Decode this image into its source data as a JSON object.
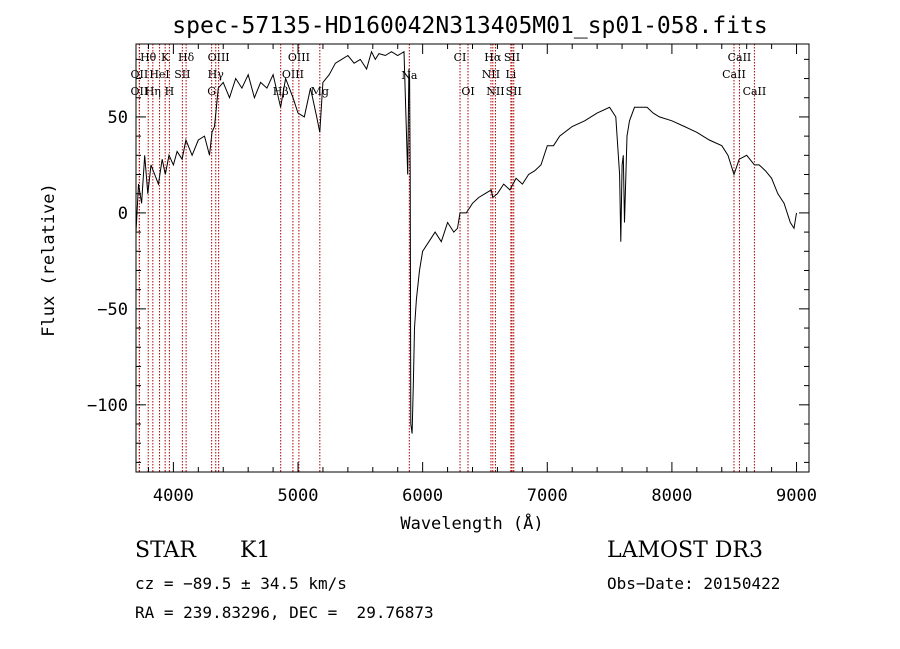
{
  "chart_data": {
    "type": "line",
    "title": "spec-57135-HD160042N313405M01_sp01-058.fits",
    "xlabel": "Wavelength (Å)",
    "ylabel": "Flux (relative)",
    "xlim": [
      3700,
      9100
    ],
    "ylim": [
      -135,
      88
    ],
    "x_ticks": [
      4000,
      5000,
      6000,
      7000,
      8000,
      9000
    ],
    "y_ticks": [
      -100,
      -50,
      0,
      50
    ],
    "line_color": "#000000",
    "marker_color": "#b00000",
    "series": [
      {
        "x": [
          3700,
          3720,
          3745,
          3770,
          3795,
          3820,
          3850,
          3880,
          3910,
          3935,
          3965,
          4000,
          4030,
          4070,
          4100,
          4150,
          4200,
          4250,
          4290,
          4310,
          4330,
          4360,
          4400,
          4450,
          4500,
          4550,
          4600,
          4650,
          4700,
          4750,
          4800,
          4860,
          4900,
          4930,
          4960,
          5000,
          5050,
          5100,
          5150,
          5175,
          5200,
          5250,
          5300,
          5350,
          5400,
          5450,
          5500,
          5550,
          5590,
          5620,
          5650,
          5700,
          5750,
          5800,
          5850,
          5880,
          5890,
          5895,
          5900,
          5905,
          5915,
          5925,
          5935,
          5950,
          5975,
          6000,
          6050,
          6100,
          6150,
          6200,
          6250,
          6280,
          6300,
          6350,
          6400,
          6450,
          6500,
          6550,
          6563,
          6600,
          6650,
          6700,
          6750,
          6800,
          6850,
          6900,
          6950,
          7000,
          7050,
          7100,
          7200,
          7300,
          7400,
          7500,
          7550,
          7580,
          7590,
          7600,
          7610,
          7620,
          7640,
          7660,
          7700,
          7800,
          7850,
          7900,
          8000,
          8100,
          8200,
          8300,
          8400,
          8450,
          8498,
          8540,
          8600,
          8662,
          8700,
          8750,
          8800,
          8850,
          8900,
          8950,
          8980,
          9000
        ],
        "y": [
          -10,
          15,
          5,
          30,
          10,
          25,
          20,
          15,
          28,
          20,
          30,
          25,
          32,
          28,
          38,
          30,
          38,
          40,
          30,
          42,
          45,
          65,
          68,
          60,
          70,
          65,
          72,
          60,
          68,
          65,
          72,
          55,
          70,
          65,
          60,
          52,
          50,
          65,
          50,
          42,
          68,
          72,
          78,
          80,
          82,
          78,
          80,
          75,
          84,
          80,
          83,
          82,
          84,
          82,
          84,
          20,
          75,
          70,
          20,
          -110,
          -115,
          -90,
          -60,
          -45,
          -30,
          -20,
          -15,
          -10,
          -15,
          -5,
          -10,
          -8,
          0,
          0,
          5,
          8,
          10,
          12,
          8,
          10,
          15,
          12,
          18,
          15,
          20,
          22,
          25,
          35,
          35,
          40,
          45,
          48,
          52,
          55,
          50,
          20,
          -15,
          25,
          30,
          -5,
          40,
          48,
          55,
          55,
          52,
          50,
          48,
          45,
          42,
          38,
          35,
          30,
          20,
          28,
          30,
          25,
          25,
          22,
          18,
          10,
          5,
          -5,
          -8,
          0
        ]
      }
    ],
    "line_markers": [
      {
        "label": "Hθ",
        "x": 3798,
        "row": 1
      },
      {
        "label": "K",
        "x": 3934,
        "row": 1
      },
      {
        "label": "Hδ",
        "x": 4102,
        "row": 1
      },
      {
        "label": "OIII",
        "x": 4363,
        "row": 1
      },
      {
        "label": "OIII",
        "x": 5007,
        "row": 1
      },
      {
        "label": "CI",
        "x": 6300,
        "row": 1
      },
      {
        "label": "Hα",
        "x": 6563,
        "row": 1
      },
      {
        "label": "SII",
        "x": 6717,
        "row": 1
      },
      {
        "label": "CaII",
        "x": 8542,
        "row": 1
      },
      {
        "label": "OII",
        "x": 3727,
        "row": 2
      },
      {
        "label": "HeI",
        "x": 3889,
        "row": 2
      },
      {
        "label": "SII",
        "x": 4072,
        "row": 2
      },
      {
        "label": "Hγ",
        "x": 4340,
        "row": 2
      },
      {
        "label": "OIII",
        "x": 4959,
        "row": 2
      },
      {
        "label": "NII",
        "x": 6548,
        "row": 2
      },
      {
        "label": "Li",
        "x": 6708,
        "row": 2
      },
      {
        "label": "CaII",
        "x": 8498,
        "row": 2
      },
      {
        "label": "OII",
        "x": 3727,
        "row": 3
      },
      {
        "label": "Hη",
        "x": 3835,
        "row": 3
      },
      {
        "label": "H",
        "x": 3968,
        "row": 3
      },
      {
        "label": "G",
        "x": 4307,
        "row": 3
      },
      {
        "label": "Hβ",
        "x": 4861,
        "row": 3
      },
      {
        "label": "Mg",
        "x": 5175,
        "row": 3
      },
      {
        "label": "Na",
        "x": 5893,
        "row": 4
      },
      {
        "label": "OI",
        "x": 6364,
        "row": 3
      },
      {
        "label": "NII",
        "x": 6584,
        "row": 3
      },
      {
        "label": "SII",
        "x": 6731,
        "row": 3
      },
      {
        "label": "CaII",
        "x": 8662,
        "row": 3
      }
    ]
  },
  "info": {
    "object_class": "STAR",
    "subclass": "K1",
    "survey": "LAMOST DR3",
    "cz": "cz = −89.5 ± 34.5 km/s",
    "obs_date": "Obs−Date: 20150422",
    "radec": "RA = 239.83296, DEC =  29.76873"
  }
}
